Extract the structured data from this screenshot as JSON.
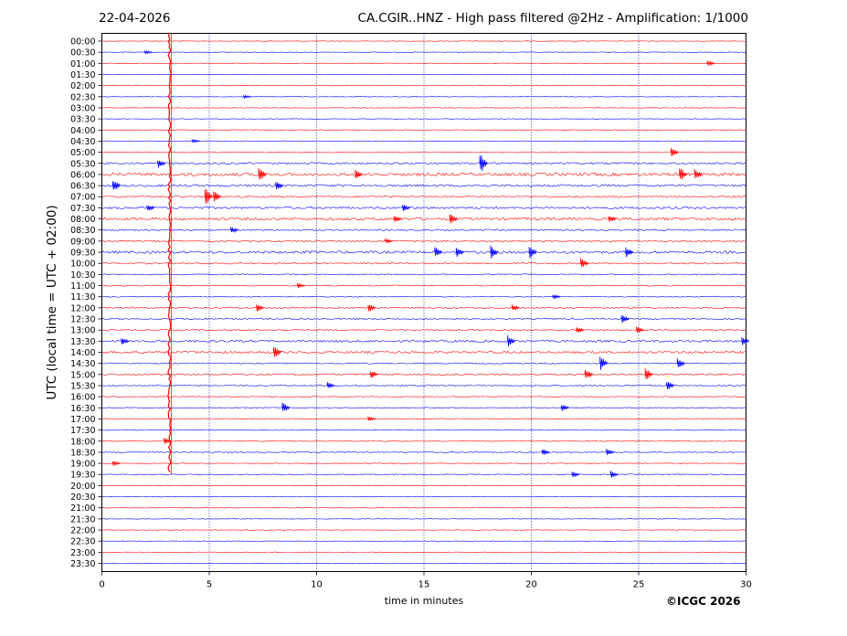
{
  "header": {
    "date": "22-04-2026",
    "title": "CA.CGIR..HNZ - High pass filtered @2Hz - Amplification: 1/1000"
  },
  "footer": {
    "copyright": "©ICGC 2026"
  },
  "colors": {
    "trace_a": "#ff0000",
    "trace_b": "#0000ff",
    "grid": "#000080"
  },
  "chart_data": {
    "type": "line",
    "title": "CA.CGIR..HNZ - High pass filtered @2Hz - Amplification: 1/1000",
    "xlabel": "time in minutes",
    "ylabel": "UTC (local time = UTC + 02:00)",
    "xlim": [
      0,
      30
    ],
    "x_ticks": [
      0,
      5,
      10,
      15,
      20,
      25,
      30
    ],
    "grid": "vertical dotted at x ticks",
    "row_labels": [
      "00:00",
      "00:30",
      "01:00",
      "01:30",
      "02:00",
      "02:30",
      "03:00",
      "03:30",
      "04:00",
      "04:30",
      "05:00",
      "05:30",
      "06:00",
      "06:30",
      "07:00",
      "07:30",
      "08:00",
      "08:30",
      "09:00",
      "09:30",
      "10:00",
      "10:30",
      "11:00",
      "11:30",
      "12:00",
      "12:30",
      "13:00",
      "13:30",
      "14:00",
      "14:30",
      "15:00",
      "15:30",
      "16:00",
      "16:30",
      "17:00",
      "17:30",
      "18:00",
      "18:30",
      "19:00",
      "19:30",
      "20:00",
      "20:30",
      "21:00",
      "21:30",
      "22:00",
      "22:30",
      "23:00",
      "23:30"
    ],
    "row_colors": [
      "red",
      "blue",
      "red",
      "blue",
      "red",
      "blue",
      "red",
      "blue",
      "red",
      "blue",
      "red",
      "blue",
      "red",
      "blue",
      "red",
      "blue",
      "red",
      "blue",
      "red",
      "blue",
      "red",
      "blue",
      "red",
      "blue",
      "red",
      "blue",
      "red",
      "blue",
      "red",
      "blue",
      "red",
      "blue",
      "red",
      "blue",
      "red",
      "blue",
      "red",
      "blue",
      "red",
      "blue",
      "red",
      "blue",
      "red",
      "blue",
      "red",
      "blue",
      "red",
      "blue"
    ],
    "noise_level": [
      0.3,
      0.3,
      0.3,
      0.3,
      0.3,
      0.3,
      0.3,
      0.3,
      0.4,
      0.4,
      0.5,
      1.0,
      1.6,
      1.2,
      0.9,
      1.2,
      1.4,
      0.8,
      0.8,
      1.4,
      0.8,
      0.6,
      0.6,
      0.5,
      0.8,
      0.8,
      0.8,
      1.2,
      1.2,
      0.6,
      0.8,
      0.6,
      0.5,
      0.5,
      0.5,
      0.4,
      0.4,
      0.6,
      0.4,
      0.5,
      0.3,
      0.3,
      0.3,
      0.3,
      0.3,
      0.3,
      0.3,
      0.3
    ],
    "large_event": {
      "start_row": "00:00",
      "end_row": "19:30",
      "minute": 3.15
    },
    "spikes": [
      {
        "row": "00:30",
        "minute": 2.0,
        "amp": 2
      },
      {
        "row": "01:00",
        "minute": 28.2,
        "amp": 3
      },
      {
        "row": "02:30",
        "minute": 6.6,
        "amp": 2
      },
      {
        "row": "04:30",
        "minute": 4.2,
        "amp": 2
      },
      {
        "row": "05:00",
        "minute": 26.5,
        "amp": 6
      },
      {
        "row": "05:30",
        "minute": 2.6,
        "amp": 5
      },
      {
        "row": "05:30",
        "minute": 17.6,
        "amp": 12
      },
      {
        "row": "06:00",
        "minute": 7.3,
        "amp": 9
      },
      {
        "row": "06:00",
        "minute": 11.8,
        "amp": 5
      },
      {
        "row": "06:00",
        "minute": 26.9,
        "amp": 8
      },
      {
        "row": "06:00",
        "minute": 27.6,
        "amp": 6
      },
      {
        "row": "06:30",
        "minute": 0.5,
        "amp": 8
      },
      {
        "row": "06:30",
        "minute": 8.1,
        "amp": 6
      },
      {
        "row": "07:00",
        "minute": 4.8,
        "amp": 10
      },
      {
        "row": "07:00",
        "minute": 5.2,
        "amp": 7
      },
      {
        "row": "07:30",
        "minute": 2.1,
        "amp": 4
      },
      {
        "row": "07:30",
        "minute": 14.0,
        "amp": 4
      },
      {
        "row": "08:00",
        "minute": 13.6,
        "amp": 5
      },
      {
        "row": "08:00",
        "minute": 16.2,
        "amp": 6
      },
      {
        "row": "08:00",
        "minute": 23.6,
        "amp": 4
      },
      {
        "row": "08:30",
        "minute": 6.0,
        "amp": 4
      },
      {
        "row": "09:00",
        "minute": 13.2,
        "amp": 3
      },
      {
        "row": "09:30",
        "minute": 15.5,
        "amp": 6
      },
      {
        "row": "09:30",
        "minute": 16.5,
        "amp": 6
      },
      {
        "row": "09:30",
        "minute": 18.1,
        "amp": 8
      },
      {
        "row": "09:30",
        "minute": 19.9,
        "amp": 8
      },
      {
        "row": "09:30",
        "minute": 24.4,
        "amp": 6
      },
      {
        "row": "10:00",
        "minute": 22.3,
        "amp": 6
      },
      {
        "row": "11:00",
        "minute": 9.1,
        "amp": 3
      },
      {
        "row": "11:30",
        "minute": 21.0,
        "amp": 3
      },
      {
        "row": "12:00",
        "minute": 7.2,
        "amp": 5
      },
      {
        "row": "12:00",
        "minute": 12.4,
        "amp": 5
      },
      {
        "row": "12:00",
        "minute": 19.1,
        "amp": 4
      },
      {
        "row": "12:30",
        "minute": 24.2,
        "amp": 5
      },
      {
        "row": "13:00",
        "minute": 22.1,
        "amp": 4
      },
      {
        "row": "13:00",
        "minute": 24.9,
        "amp": 4
      },
      {
        "row": "13:30",
        "minute": 0.9,
        "amp": 4
      },
      {
        "row": "13:30",
        "minute": 18.9,
        "amp": 7
      },
      {
        "row": "13:30",
        "minute": 29.8,
        "amp": 5
      },
      {
        "row": "14:00",
        "minute": 8.0,
        "amp": 7
      },
      {
        "row": "14:30",
        "minute": 23.2,
        "amp": 8
      },
      {
        "row": "14:30",
        "minute": 26.8,
        "amp": 6
      },
      {
        "row": "15:00",
        "minute": 12.5,
        "amp": 5
      },
      {
        "row": "15:00",
        "minute": 22.5,
        "amp": 6
      },
      {
        "row": "15:00",
        "minute": 25.3,
        "amp": 7
      },
      {
        "row": "15:30",
        "minute": 10.5,
        "amp": 4
      },
      {
        "row": "15:30",
        "minute": 26.3,
        "amp": 6
      },
      {
        "row": "16:30",
        "minute": 8.4,
        "amp": 6
      },
      {
        "row": "16:30",
        "minute": 21.4,
        "amp": 4
      },
      {
        "row": "17:00",
        "minute": 12.4,
        "amp": 3
      },
      {
        "row": "18:00",
        "minute": 2.9,
        "amp": 4
      },
      {
        "row": "18:30",
        "minute": 20.5,
        "amp": 4
      },
      {
        "row": "18:30",
        "minute": 23.5,
        "amp": 4
      },
      {
        "row": "19:00",
        "minute": 0.5,
        "amp": 3
      },
      {
        "row": "19:30",
        "minute": 21.9,
        "amp": 4
      },
      {
        "row": "19:30",
        "minute": 23.7,
        "amp": 4
      }
    ]
  }
}
